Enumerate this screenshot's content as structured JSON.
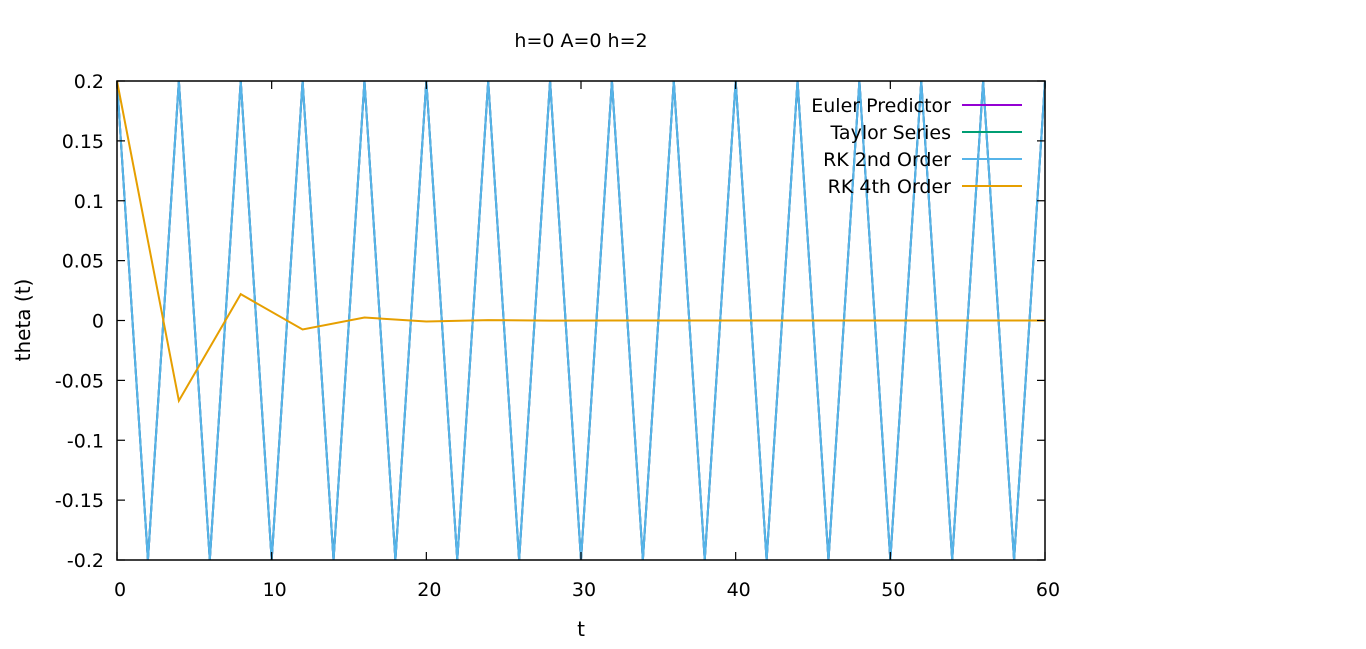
{
  "chart_data": {
    "type": "line",
    "title": "h=0 A=0 h=2",
    "xlabel": "t",
    "ylabel": "theta (t)",
    "xlim": [
      0,
      60
    ],
    "ylim": [
      -0.2,
      0.2
    ],
    "x_ticks": [
      0,
      10,
      20,
      30,
      40,
      50,
      60
    ],
    "y_ticks": [
      0.2,
      0.15,
      0.1,
      0.05,
      0,
      -0.05,
      -0.1,
      -0.15,
      -0.2
    ],
    "grid": false,
    "legend_position": "top-right",
    "series": [
      {
        "name": "Euler Predictor",
        "color": "#9400d3",
        "x": [
          0,
          2,
          4,
          6,
          8,
          10,
          12,
          14,
          16,
          18,
          20,
          22,
          24,
          26,
          28,
          30,
          32,
          34,
          36,
          38,
          40,
          42,
          44,
          46,
          48,
          50,
          52,
          54,
          56,
          58,
          60
        ],
        "values": [
          0.2,
          -0.2,
          0.2,
          -0.2,
          0.2,
          -0.2,
          0.2,
          -0.2,
          0.2,
          -0.2,
          0.2,
          -0.2,
          0.2,
          -0.2,
          0.2,
          -0.2,
          0.2,
          -0.2,
          0.2,
          -0.2,
          0.2,
          -0.2,
          0.2,
          -0.2,
          0.2,
          -0.2,
          0.2,
          -0.2,
          0.2,
          -0.2,
          0.2
        ]
      },
      {
        "name": "Taylor Series",
        "color": "#009e73",
        "x": [
          0,
          2,
          4,
          6,
          8,
          10,
          12,
          14,
          16,
          18,
          20,
          22,
          24,
          26,
          28,
          30,
          32,
          34,
          36,
          38,
          40,
          42,
          44,
          46,
          48,
          50,
          52,
          54,
          56,
          58,
          60
        ],
        "values": [
          0.2,
          -0.2,
          0.2,
          -0.2,
          0.2,
          -0.2,
          0.2,
          -0.2,
          0.2,
          -0.2,
          0.2,
          -0.2,
          0.2,
          -0.2,
          0.2,
          -0.2,
          0.2,
          -0.2,
          0.2,
          -0.2,
          0.2,
          -0.2,
          0.2,
          -0.2,
          0.2,
          -0.2,
          0.2,
          -0.2,
          0.2,
          -0.2,
          0.2
        ]
      },
      {
        "name": "RK 2nd Order",
        "color": "#56b4e9",
        "x": [
          0,
          2,
          4,
          6,
          8,
          10,
          12,
          14,
          16,
          18,
          20,
          22,
          24,
          26,
          28,
          30,
          32,
          34,
          36,
          38,
          40,
          42,
          44,
          46,
          48,
          50,
          52,
          54,
          56,
          58,
          60
        ],
        "values": [
          0.2,
          -0.2,
          0.2,
          -0.2,
          0.2,
          -0.2,
          0.2,
          -0.2,
          0.2,
          -0.2,
          0.2,
          -0.2,
          0.2,
          -0.2,
          0.2,
          -0.2,
          0.2,
          -0.2,
          0.2,
          -0.2,
          0.2,
          -0.2,
          0.2,
          -0.2,
          0.2,
          -0.2,
          0.2,
          -0.2,
          0.2,
          -0.2,
          0.2
        ]
      },
      {
        "name": "RK 4th Order",
        "color": "#e69f00",
        "x": [
          0,
          4,
          8,
          12,
          16,
          20,
          24,
          28,
          32,
          36,
          40,
          44,
          48,
          52,
          56,
          60
        ],
        "values": [
          0.2,
          -0.067,
          0.022,
          -0.0075,
          0.0025,
          -0.0008,
          0.0003,
          -0.0001,
          0,
          0,
          0,
          0,
          0,
          0,
          0,
          0
        ]
      }
    ]
  }
}
